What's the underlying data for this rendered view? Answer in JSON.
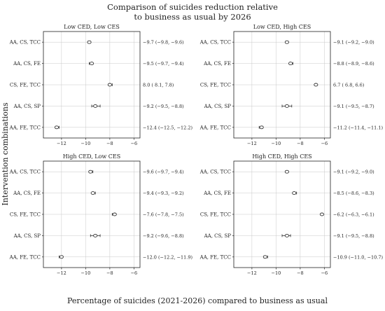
{
  "chart_data": {
    "type": "scatter",
    "title": [
      "Comparison of suicides reduction relative",
      "to business as usual by 2026"
    ],
    "xlabel": "Percentage of suicides (2021-2026) compared to business as usual",
    "ylabel": "Intervention combinations",
    "xlim": [
      -13.5,
      -5.5
    ],
    "xticks": [
      -12,
      -10,
      -8,
      -6
    ],
    "grid": "on",
    "categories": [
      "AA, CS, TCC",
      "AA, CS, FE",
      "CS, FE, TCC",
      "AA, CS, SP",
      "AA, FE, TCC"
    ],
    "panels": [
      {
        "title": "Low CED, Low CES",
        "points": [
          {
            "value": -9.7,
            "low": -9.8,
            "high": -9.6,
            "label": "−9.7 (−9.8, −9.6)"
          },
          {
            "value": -9.5,
            "low": -9.7,
            "high": -9.4,
            "label": "−9.5 (−9.7, −9.4)"
          },
          {
            "value": -8.0,
            "low": -8.1,
            "high": -7.8,
            "label": "8.0 (  8.1,   7.8)"
          },
          {
            "value": -9.2,
            "low": -9.5,
            "high": -8.8,
            "label": "−9.2 (−9.5, −8.8)"
          },
          {
            "value": -12.4,
            "low": -12.5,
            "high": -12.2,
            "label": "−12.4 (−12.5, −12.2)"
          }
        ]
      },
      {
        "title": "Low CED, High CES",
        "points": [
          {
            "value": -9.1,
            "low": -9.2,
            "high": -9.0,
            "label": "−9.1 (−9.2, −9.0)"
          },
          {
            "value": -8.8,
            "low": -8.9,
            "high": -8.6,
            "label": "−8.8 (−8.9, −8.6)"
          },
          {
            "value": -6.7,
            "low": -6.8,
            "high": -6.6,
            "label": "6.7 (  6.8,   6.6)"
          },
          {
            "value": -9.1,
            "low": -9.5,
            "high": -8.7,
            "label": "−9.1 (−9.5, −8.7)"
          },
          {
            "value": -11.2,
            "low": -11.4,
            "high": -11.1,
            "label": "−11.2 (−11.4, −11.1)"
          }
        ]
      },
      {
        "title": "High CED, Low CES",
        "points": [
          {
            "value": -9.6,
            "low": -9.7,
            "high": -9.4,
            "label": "−9.6 (−9.7, −9.4)"
          },
          {
            "value": -9.4,
            "low": -9.3,
            "high": -9.2,
            "label": "−9.4 (−9.3, −9.2)"
          },
          {
            "value": -7.6,
            "low": -7.8,
            "high": -7.5,
            "label": "−7.6 (−7.8, −7.5)"
          },
          {
            "value": -9.2,
            "low": -9.6,
            "high": -8.8,
            "label": "−9.2 (−9.6, −8.8)"
          },
          {
            "value": -12.0,
            "low": -12.2,
            "high": -11.9,
            "label": "−12.0 (−12.2, −11.9)"
          }
        ]
      },
      {
        "title": "High CED, High CES",
        "points": [
          {
            "value": -9.1,
            "low": -9.2,
            "high": -9.0,
            "label": "−9.1 (−9.2, −9.0)"
          },
          {
            "value": -8.5,
            "low": -8.6,
            "high": -8.3,
            "label": "−8.5 (−8.6, −8.3)"
          },
          {
            "value": -6.2,
            "low": -6.3,
            "high": -6.1,
            "label": "−6.2 (−6.3, −6.1)"
          },
          {
            "value": -9.1,
            "low": -9.5,
            "high": -8.8,
            "label": "−9.1 (−9.5, −8.8)"
          },
          {
            "value": -10.9,
            "low": -11.0,
            "high": -10.7,
            "label": "−10.9 (−11.0, −10.7)"
          }
        ]
      }
    ]
  }
}
